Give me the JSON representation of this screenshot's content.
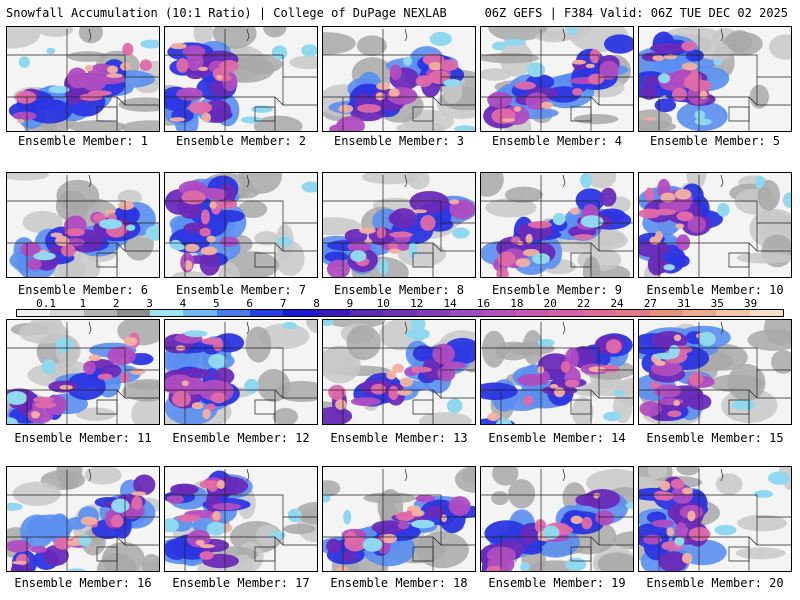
{
  "header": {
    "left": "Snowfall Accumulation (10:1 Ratio) | College of DuPage NEXLAB",
    "right": "06Z GEFS | F384 Valid: 06Z TUE DEC 02 2025"
  },
  "members": [
    {
      "label": "Ensemble Member: 1"
    },
    {
      "label": "Ensemble Member: 2"
    },
    {
      "label": "Ensemble Member: 3"
    },
    {
      "label": "Ensemble Member: 4"
    },
    {
      "label": "Ensemble Member: 5"
    },
    {
      "label": "Ensemble Member: 6"
    },
    {
      "label": "Ensemble Member: 7"
    },
    {
      "label": "Ensemble Member: 8"
    },
    {
      "label": "Ensemble Member: 9"
    },
    {
      "label": "Ensemble Member: 10"
    },
    {
      "label": "Ensemble Member: 11"
    },
    {
      "label": "Ensemble Member: 12"
    },
    {
      "label": "Ensemble Member: 13"
    },
    {
      "label": "Ensemble Member: 14"
    },
    {
      "label": "Ensemble Member: 15"
    },
    {
      "label": "Ensemble Member: 16"
    },
    {
      "label": "Ensemble Member: 17"
    },
    {
      "label": "Ensemble Member: 18"
    },
    {
      "label": "Ensemble Member: 19"
    },
    {
      "label": "Ensemble Member: 20"
    }
  ],
  "colorbar": {
    "ticks": [
      "0.1",
      "1",
      "2",
      "3",
      "4",
      "5",
      "6",
      "7",
      "8",
      "9",
      "10",
      "12",
      "14",
      "16",
      "18",
      "20",
      "22",
      "24",
      "27",
      "31",
      "35",
      "39"
    ],
    "colors": [
      "#f2f2f2",
      "#d9d9d9",
      "#b3b3b3",
      "#8c8c8c",
      "#9fe3f3",
      "#6fb8f2",
      "#4a7be8",
      "#2a3fe0",
      "#1a1ad0",
      "#3a1ab8",
      "#5a2ab0",
      "#6e33b4",
      "#8240b8",
      "#9a4cc0",
      "#b052b8",
      "#c858b0",
      "#d860a8",
      "#e06a98",
      "#e27888",
      "#e8907e",
      "#eeaa8e",
      "#f2c6a8",
      "#f8e0c8"
    ]
  }
}
